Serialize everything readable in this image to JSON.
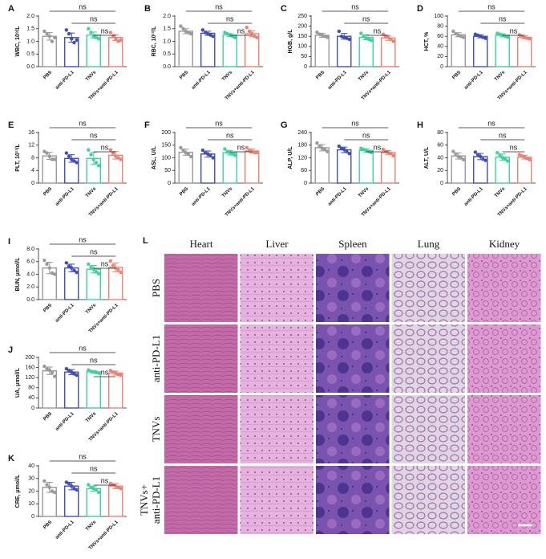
{
  "chart_data": [
    {
      "type": "bar",
      "panel": "A",
      "y_label": "WBC, 10⁹/L",
      "categories": [
        "PBS",
        "anti-PD-L1",
        "TNVs",
        "TNVs+anti-PD-L1"
      ],
      "colors": [
        "#9a9a9a",
        "#3f4fb5",
        "#3fd29a",
        "#f08070"
      ],
      "values": [
        1.2,
        1.15,
        1.25,
        1.15
      ],
      "errors": [
        0.15,
        0.18,
        0.12,
        0.12
      ],
      "points": [
        [
          1.4,
          1.3,
          1.2,
          1.0,
          1.15
        ],
        [
          1.45,
          1.3,
          1.1,
          0.95,
          1.05
        ],
        [
          1.5,
          1.35,
          1.2,
          1.15,
          1.1
        ],
        [
          1.35,
          1.2,
          1.1,
          1.0,
          1.05
        ]
      ],
      "ylim": [
        0,
        2
      ],
      "yticks": [
        {
          "value": 0,
          "label": "0.0"
        },
        0.5,
        {
          "value": 1,
          "label": "1.0"
        },
        1.5,
        {
          "value": 2,
          "label": "2.0"
        }
      ],
      "significance": [
        "ns",
        "ns",
        "ns"
      ]
    },
    {
      "type": "bar",
      "panel": "B",
      "y_label": "RBC, 10¹²/L",
      "categories": [
        "PBS",
        "anti-PD-L1",
        "TNVs",
        "TNVs+anti-PD-L1"
      ],
      "colors": [
        "#9a9a9a",
        "#3f4fb5",
        "#3fd29a",
        "#f08070"
      ],
      "values": [
        1.4,
        1.32,
        1.25,
        1.3
      ],
      "errors": [
        0.1,
        0.08,
        0.06,
        0.12
      ],
      "points": [
        [
          1.6,
          1.5,
          1.4,
          1.35,
          1.3
        ],
        [
          1.45,
          1.35,
          1.3,
          1.25,
          1.2
        ],
        [
          1.35,
          1.3,
          1.25,
          1.2,
          1.15
        ],
        [
          1.55,
          1.4,
          1.3,
          1.2,
          1.15
        ]
      ],
      "ylim": [
        0,
        2
      ],
      "yticks": [
        {
          "value": 0,
          "label": "0.0"
        },
        0.5,
        {
          "value": 1,
          "label": "1.0"
        },
        1.5,
        {
          "value": 2,
          "label": "2.0"
        }
      ],
      "significance": [
        "ns",
        "ns",
        "ns"
      ]
    },
    {
      "type": "bar",
      "panel": "C",
      "y_label": "HGB, g/L",
      "categories": [
        "PBS",
        "anti-PD-L1",
        "TNVs",
        "TNVs+anti-PD-L1"
      ],
      "colors": [
        "#9a9a9a",
        "#3f4fb5",
        "#3fd29a",
        "#f08070"
      ],
      "values": [
        155,
        150,
        145,
        142
      ],
      "errors": [
        10,
        14,
        12,
        12
      ],
      "points": [
        [
          170,
          160,
          155,
          150,
          145
        ],
        [
          175,
          150,
          145,
          140,
          135
        ],
        [
          165,
          150,
          140,
          135,
          130
        ],
        [
          160,
          150,
          145,
          135,
          125
        ]
      ],
      "ylim": [
        0,
        250
      ],
      "yticks": [
        0,
        50,
        100,
        150,
        200,
        250
      ],
      "significance": [
        "ns",
        "ns",
        "ns"
      ]
    },
    {
      "type": "bar",
      "panel": "D",
      "y_label": "HCT, %",
      "categories": [
        "PBS",
        "anti-PD-L1",
        "TNVs",
        "TNVs+anti-PD-L1"
      ],
      "colors": [
        "#9a9a9a",
        "#3f4fb5",
        "#3fd29a",
        "#f08070"
      ],
      "values": [
        63,
        60,
        62,
        58
      ],
      "errors": [
        4,
        3,
        3,
        3
      ],
      "points": [
        [
          70,
          65,
          62,
          60,
          58
        ],
        [
          64,
          62,
          60,
          58,
          56
        ],
        [
          66,
          64,
          62,
          60,
          58
        ],
        [
          63,
          60,
          58,
          56,
          55
        ]
      ],
      "ylim": [
        0,
        100
      ],
      "yticks": [
        0,
        20,
        40,
        60,
        80,
        100
      ],
      "significance": [
        "ns",
        "ns",
        "ns"
      ]
    },
    {
      "type": "bar",
      "panel": "E",
      "y_label": "PLT, 10¹¹/L",
      "categories": [
        "PBS",
        "anti-PD-L1",
        "TNVs",
        "TNVs+anti-PD-L1"
      ],
      "colors": [
        "#9a9a9a",
        "#3f4fb5",
        "#3fd29a",
        "#f08070"
      ],
      "values": [
        8.6,
        7.8,
        7.8,
        8.8
      ],
      "errors": [
        1.1,
        1.2,
        1.9,
        1.2
      ],
      "points": [
        [
          10,
          9.5,
          8.5,
          7.5,
          7.5
        ],
        [
          9.5,
          8.5,
          7.5,
          7,
          6.5
        ],
        [
          10.5,
          9,
          7.5,
          6.5,
          5.5
        ],
        [
          10.5,
          9.5,
          8.5,
          8,
          7.5
        ]
      ],
      "ylim": [
        0,
        16
      ],
      "yticks": [
        0,
        4,
        8,
        12,
        16
      ],
      "significance": [
        "ns",
        "ns",
        "ns"
      ]
    },
    {
      "type": "bar",
      "panel": "F",
      "y_label": "ASL, U/L",
      "categories": [
        "PBS",
        "anti-PD-L1",
        "TNVs",
        "TNVs+anti-PD-L1"
      ],
      "colors": [
        "#9a9a9a",
        "#3f4fb5",
        "#3fd29a",
        "#f08070"
      ],
      "values": [
        122,
        115,
        120,
        127
      ],
      "errors": [
        12,
        12,
        9,
        8
      ],
      "points": [
        [
          140,
          130,
          120,
          115,
          105
        ],
        [
          130,
          120,
          115,
          110,
          100
        ],
        [
          135,
          125,
          120,
          115,
          110
        ],
        [
          140,
          130,
          125,
          120,
          120
        ]
      ],
      "ylim": [
        0,
        200
      ],
      "yticks": [
        0,
        50,
        100,
        150,
        200
      ],
      "significance": [
        "ns",
        "ns",
        "ns"
      ]
    },
    {
      "type": "bar",
      "panel": "G",
      "y_label": "ALP, U/L",
      "categories": [
        "PBS",
        "anti-PD-L1",
        "TNVs",
        "TNVs+anti-PD-L1"
      ],
      "colors": [
        "#9a9a9a",
        "#3f4fb5",
        "#3fd29a",
        "#f08070"
      ],
      "values": [
        168,
        158,
        155,
        145
      ],
      "errors": [
        15,
        13,
        8,
        10
      ],
      "points": [
        [
          190,
          175,
          165,
          160,
          150
        ],
        [
          175,
          165,
          160,
          150,
          140
        ],
        [
          165,
          160,
          155,
          150,
          145
        ],
        [
          160,
          150,
          145,
          140,
          130
        ]
      ],
      "ylim": [
        0,
        240
      ],
      "yticks": [
        0,
        60,
        120,
        180,
        240
      ],
      "significance": [
        "ns",
        "ns",
        "ns"
      ]
    },
    {
      "type": "bar",
      "panel": "H",
      "y_label": "ALT, U/L",
      "categories": [
        "PBS",
        "anti-PD-L1",
        "TNVs",
        "TNVs+anti-PD-L1"
      ],
      "colors": [
        "#9a9a9a",
        "#3f4fb5",
        "#3fd29a",
        "#f08070"
      ],
      "values": [
        43,
        42,
        41,
        41
      ],
      "errors": [
        5,
        5,
        5,
        3
      ],
      "points": [
        [
          50,
          46,
          42,
          40,
          37
        ],
        [
          49,
          45,
          42,
          38,
          36
        ],
        [
          48,
          44,
          40,
          38,
          35
        ],
        [
          45,
          43,
          41,
          39,
          37
        ]
      ],
      "ylim": [
        0,
        80
      ],
      "yticks": [
        0,
        20,
        40,
        60,
        80
      ],
      "significance": [
        "ns",
        "ns",
        "ns"
      ]
    },
    {
      "type": "bar",
      "panel": "I",
      "y_label": "BUN, μmol/L",
      "categories": [
        "PBS",
        "anti-PD-L1",
        "TNVs",
        "TNVs+anti-PD-L1"
      ],
      "colors": [
        "#9a9a9a",
        "#3f4fb5",
        "#3fd29a",
        "#f08070"
      ],
      "values": [
        5.0,
        5.0,
        4.8,
        5.1
      ],
      "errors": [
        0.9,
        0.6,
        0.6,
        0.7
      ],
      "points": [
        [
          6.2,
          5.6,
          5,
          4.2,
          4
        ],
        [
          5.8,
          5.3,
          5,
          4.6,
          4.3
        ],
        [
          5.6,
          5.1,
          4.8,
          4.4,
          4.1
        ],
        [
          6.1,
          5.4,
          5,
          4.7,
          4.3
        ]
      ],
      "ylim": [
        0,
        8
      ],
      "yticks": [
        {
          "value": 0,
          "label": "0.0"
        },
        {
          "value": 2,
          "label": "2.0"
        },
        {
          "value": 4,
          "label": "4.0"
        },
        {
          "value": 6,
          "label": "6.0"
        },
        {
          "value": 8,
          "label": "8.0"
        }
      ],
      "significance": [
        "ns",
        "ns",
        "ns"
      ]
    },
    {
      "type": "bar",
      "panel": "J",
      "y_label": "UA, μmol/L",
      "categories": [
        "PBS",
        "anti-PD-L1",
        "TNVs",
        "TNVs+anti-PD-L1"
      ],
      "colors": [
        "#9a9a9a",
        "#3f4fb5",
        "#3fd29a",
        "#f08070"
      ],
      "values": [
        147,
        142,
        143,
        138
      ],
      "errors": [
        15,
        10,
        5,
        8
      ],
      "points": [
        [
          165,
          155,
          150,
          140,
          125
        ],
        [
          155,
          148,
          142,
          135,
          130
        ],
        [
          150,
          145,
          142,
          140,
          138
        ],
        [
          148,
          142,
          138,
          132,
          130
        ]
      ],
      "ylim": [
        0,
        200
      ],
      "yticks": [
        0,
        40,
        80,
        120,
        160,
        200
      ],
      "significance": [
        "ns",
        "ns",
        "ns"
      ]
    },
    {
      "type": "bar",
      "panel": "K",
      "y_label": "CRE, μmol/L",
      "categories": [
        "PBS",
        "anti-PD-L1",
        "TNVs",
        "TNVs+anti-PD-L1"
      ],
      "colors": [
        "#9a9a9a",
        "#3f4fb5",
        "#3fd29a",
        "#f08070"
      ],
      "values": [
        23,
        24,
        22,
        24
      ],
      "errors": [
        4,
        3,
        2,
        2
      ],
      "points": [
        [
          28,
          25,
          23,
          20,
          19
        ],
        [
          27,
          26,
          24,
          22,
          21
        ],
        [
          25,
          23,
          22,
          21,
          19
        ],
        [
          26,
          25,
          24,
          23,
          22
        ]
      ],
      "ylim": [
        0,
        40
      ],
      "yticks": [
        0,
        10,
        20,
        30,
        40
      ],
      "significance": [
        "ns",
        "ns",
        "ns"
      ]
    }
  ],
  "histology": {
    "panel": "L",
    "columns": [
      "Heart",
      "Liver",
      "Spleen",
      "Lung",
      "Kidney"
    ],
    "rows": [
      [
        "PBS"
      ],
      [
        "anti-PD-L1"
      ],
      [
        "TNVs"
      ],
      [
        "TNVs+",
        "anti-PD-L1"
      ]
    ]
  }
}
